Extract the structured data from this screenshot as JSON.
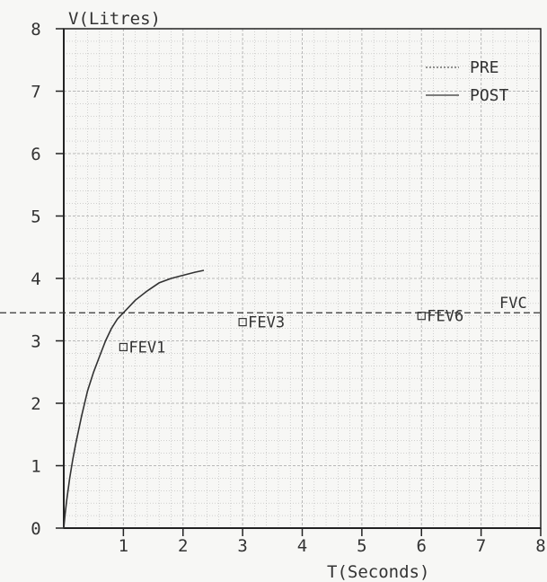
{
  "chart_data": {
    "type": "line",
    "title": "",
    "xlabel": "T(Seconds)",
    "ylabel": "V(Litres)",
    "xlim": [
      0,
      8
    ],
    "ylim": [
      0,
      8
    ],
    "xticks": [
      "1",
      "2",
      "3",
      "4",
      "5",
      "6",
      "7",
      "8"
    ],
    "yticks": [
      "0",
      "1",
      "2",
      "3",
      "4",
      "5",
      "6",
      "7",
      "8"
    ],
    "grid": true,
    "legend": {
      "placement": "top-right",
      "entries": [
        {
          "label": "PRE",
          "style": "dotted"
        },
        {
          "label": "POST",
          "style": "solid"
        }
      ]
    },
    "series": [
      {
        "name": "POST",
        "x": [
          0,
          0.02,
          0.05,
          0.1,
          0.15,
          0.2,
          0.3,
          0.4,
          0.5,
          0.6,
          0.7,
          0.8,
          0.9,
          1.0,
          1.1,
          1.2,
          1.4,
          1.6,
          1.8,
          2.0,
          2.2,
          2.35
        ],
        "y": [
          0,
          0.2,
          0.45,
          0.8,
          1.1,
          1.35,
          1.8,
          2.2,
          2.5,
          2.75,
          3.0,
          3.2,
          3.35,
          3.45,
          3.55,
          3.65,
          3.8,
          3.93,
          4.0,
          4.05,
          4.1,
          4.13
        ]
      }
    ],
    "fvc": {
      "label": "FVC",
      "value": 3.45
    },
    "annotations": [
      {
        "label": "FEV1",
        "x": 1,
        "y": 2.9
      },
      {
        "label": "FEV3",
        "x": 3,
        "y": 3.3
      },
      {
        "label": "FEV6",
        "x": 6,
        "y": 3.4
      }
    ],
    "colors": {
      "grid": "#b8b8b8",
      "axis": "#222222",
      "line": "#333333",
      "text": "#333333"
    }
  }
}
